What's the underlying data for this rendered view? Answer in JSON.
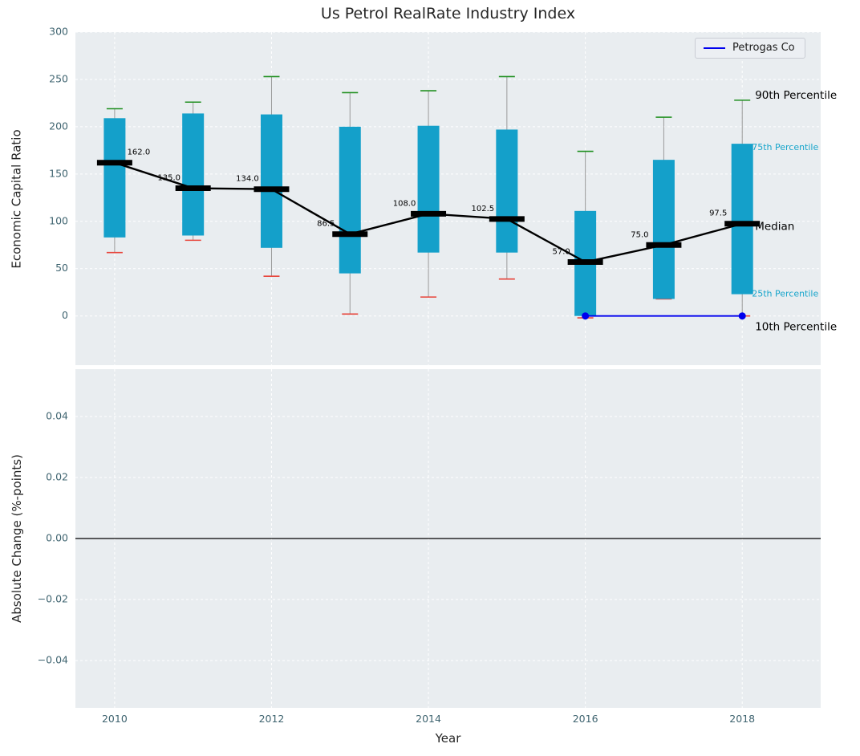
{
  "title": "Us Petrol RealRate Industry Index",
  "legend": {
    "label": "Petrogas Co"
  },
  "colors": {
    "bar": "#14a0ca",
    "cap_top": "#209020",
    "cap_bottom": "#e8443a",
    "median": "#000000",
    "overlay": "#0000ee",
    "panel": "#e9edf0",
    "grid": "#ffffff",
    "tick_label": "#3f6470",
    "annotation_accent": "#17a5cb",
    "annotation_text": "#000000",
    "whisker": "#9a9a9a",
    "zero_line": "#000000"
  },
  "chart_data": [
    {
      "type": "bar",
      "subtype": "percentile-box-bars-with-median-line",
      "title": "Us Petrol RealRate Industry Index",
      "xlabel": "Year",
      "ylabel": "Economic Capital Ratio",
      "xlim": [
        2009.5,
        2019
      ],
      "ylim": [
        -52,
        300
      ],
      "xtick_values": [
        2010,
        2012,
        2014,
        2016,
        2018
      ],
      "xtick_labels": [
        "2010",
        "2012",
        "2014",
        "2016",
        "2018"
      ],
      "ytick_values": [
        300,
        250,
        200,
        150,
        100,
        50,
        0
      ],
      "ytick_labels": [
        "300",
        "250",
        "200",
        "150",
        "100",
        "50",
        "0"
      ],
      "years": [
        2010,
        2011,
        2012,
        2013,
        2014,
        2015,
        2016,
        2017,
        2018
      ],
      "p90": [
        219,
        226,
        253,
        236,
        238,
        253,
        174,
        210,
        228
      ],
      "p75": [
        209,
        214,
        213,
        200,
        201,
        197,
        111,
        165,
        182
      ],
      "median": [
        162,
        135,
        134,
        86.5,
        108,
        102.5,
        57,
        75,
        97.5
      ],
      "p25": [
        83,
        85,
        72,
        45,
        67,
        67,
        0,
        18,
        23
      ],
      "p10": [
        67,
        80,
        42,
        2,
        20,
        39,
        -2,
        18,
        0
      ],
      "median_labels": [
        "162.0",
        "135.0",
        "134.0",
        "86.5",
        "108.0",
        "102.5",
        "57.0",
        "75.0",
        "97.5"
      ],
      "overlay_series": {
        "name": "Petrogas Co",
        "x": [
          2016,
          2017,
          2018
        ],
        "y": [
          0,
          0,
          0
        ],
        "marker_x": [
          2016,
          2018
        ]
      },
      "annotations": [
        {
          "text": "90th Percentile",
          "stat": "p90",
          "style": "black"
        },
        {
          "text": "75th Percentile",
          "stat": "p75",
          "style": "cyan"
        },
        {
          "text": "Median",
          "stat": "median",
          "style": "black"
        },
        {
          "text": "25th Percentile",
          "stat": "p25",
          "style": "cyan"
        },
        {
          "text": "10th Percentile",
          "stat": "p10",
          "style": "black"
        }
      ],
      "legend_position": "upper right",
      "grid": true
    },
    {
      "type": "line",
      "title": "",
      "xlabel": "Year",
      "ylabel": "Absolute Change (%-points)",
      "xlim": [
        2009.5,
        2019
      ],
      "ylim": [
        -0.0555,
        0.0555
      ],
      "ytick_values": [
        0.04,
        0.02,
        0,
        -0.02,
        -0.04
      ],
      "ytick_labels": [
        "0.04",
        "0.02",
        "0.00",
        "−0.02",
        "−0.04"
      ],
      "series": [],
      "zero_line": 0.0,
      "grid": true
    }
  ]
}
